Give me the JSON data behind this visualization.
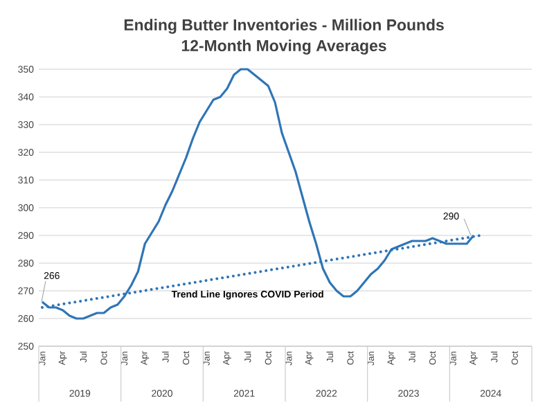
{
  "chart_data": {
    "type": "line",
    "title": "Ending Butter Inventories - Million Pounds",
    "subtitle": "12-Month Moving Averages",
    "categories": [
      "Jan",
      null,
      null,
      "Apr",
      null,
      null,
      "Jul",
      null,
      null,
      "Oct",
      null,
      null,
      "Jan",
      null,
      null,
      "Apr",
      null,
      null,
      "Jul",
      null,
      null,
      "Oct",
      null,
      null,
      "Jan",
      null,
      null,
      "Apr",
      null,
      null,
      "Jul",
      null,
      null,
      "Oct",
      null,
      null,
      "Jan",
      null,
      null,
      "Apr",
      null,
      null,
      "Jul",
      null,
      null,
      "Oct",
      null,
      null,
      "Jan",
      null,
      null,
      "Apr",
      null,
      null,
      "Jul",
      null,
      null,
      "Oct",
      null,
      null,
      "Jan",
      null,
      null,
      "Apr",
      null,
      null,
      "Jul",
      null,
      null,
      "Oct",
      null,
      null
    ],
    "series": [
      {
        "color": "#2e75b6",
        "line_style": "solid",
        "values": [
          266,
          264,
          264,
          263,
          261,
          260,
          260,
          261,
          262,
          262,
          264,
          265,
          268,
          272,
          277,
          287,
          291,
          295,
          301,
          306,
          312,
          318,
          325,
          331,
          335,
          339,
          340,
          343,
          348,
          350,
          350,
          348,
          346,
          344,
          338,
          327,
          320,
          313,
          304,
          295,
          287,
          278,
          273,
          270,
          268,
          268,
          270,
          273,
          276,
          278,
          281,
          285,
          286,
          287,
          288,
          288,
          288,
          289,
          288,
          287,
          287,
          287,
          287,
          290,
          null,
          null,
          null,
          null,
          null,
          null,
          null,
          null
        ]
      },
      {
        "color": "#2e75b6",
        "line_style": "dotted",
        "values": [
          264,
          null,
          null,
          null,
          null,
          null,
          null,
          null,
          null,
          null,
          null,
          null,
          null,
          null,
          null,
          null,
          null,
          null,
          null,
          null,
          null,
          null,
          null,
          null,
          null,
          null,
          null,
          null,
          null,
          null,
          null,
          null,
          null,
          null,
          null,
          null,
          null,
          null,
          null,
          null,
          null,
          null,
          null,
          null,
          null,
          null,
          null,
          null,
          null,
          null,
          null,
          null,
          null,
          null,
          null,
          null,
          null,
          null,
          null,
          null,
          null,
          null,
          null,
          null,
          290,
          null,
          null,
          null,
          null,
          null,
          null,
          null
        ]
      }
    ],
    "annotations": [
      "266",
      "290",
      "Trend Line Ignores COVID Period",
      "2019",
      "2020",
      "2021",
      "2022",
      "2023",
      "2024"
    ],
    "ylim": [
      250,
      350
    ],
    "yticks": [
      250,
      260,
      270,
      280,
      290,
      300,
      310,
      320,
      330,
      340,
      350
    ],
    "grid": "y",
    "marker": "none"
  }
}
